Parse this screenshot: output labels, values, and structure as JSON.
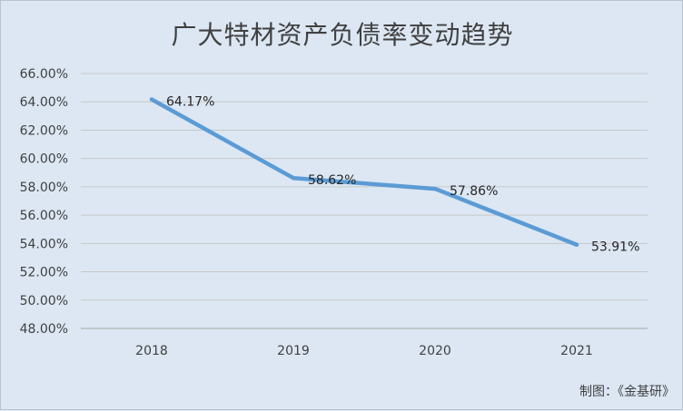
{
  "chart_data": {
    "type": "line",
    "title": "广大特材资产负债率变动趋势",
    "categories": [
      "2018",
      "2019",
      "2020",
      "2021"
    ],
    "series": [
      {
        "values": [
          64.17,
          58.62,
          57.86,
          53.91
        ]
      }
    ],
    "data_labels": [
      "64.17%",
      "58.62%",
      "57.86%",
      "53.91%"
    ],
    "ylim": [
      48,
      66
    ],
    "yticks": [
      "48.00%",
      "50.00%",
      "52.00%",
      "54.00%",
      "56.00%",
      "58.00%",
      "60.00%",
      "62.00%",
      "64.00%",
      "66.00%"
    ],
    "ytick_values": [
      48,
      50,
      52,
      54,
      56,
      58,
      60,
      62,
      64,
      66
    ],
    "grid": true,
    "line_color": "#5b9bd5"
  },
  "credit": "制图：《金基研》"
}
